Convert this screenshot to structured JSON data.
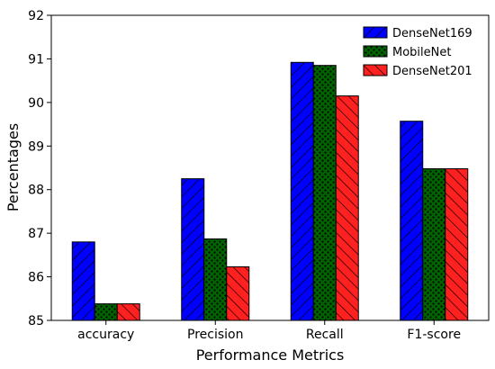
{
  "chart_data": {
    "type": "bar",
    "title": "",
    "xlabel": "Performance Metrics",
    "ylabel": "Percentages",
    "categories": [
      "accuracy",
      "Precision",
      "Recall",
      "F1-score"
    ],
    "ylim": [
      85,
      92
    ],
    "yticks": [
      85,
      86,
      87,
      88,
      89,
      90,
      91,
      92
    ],
    "grid": false,
    "legend_position": "top-right",
    "series": [
      {
        "name": "DenseNet169",
        "values": [
          86.8,
          88.25,
          90.92,
          89.57
        ],
        "color": "#0000ff",
        "hatch": "diagonal"
      },
      {
        "name": "MobileNet",
        "values": [
          85.38,
          86.87,
          90.85,
          88.48
        ],
        "color": "#006400",
        "hatch": "dots"
      },
      {
        "name": "DenseNet201",
        "values": [
          85.38,
          86.23,
          90.15,
          88.48
        ],
        "color": "#ff2020",
        "hatch": "back-diagonal"
      }
    ]
  }
}
